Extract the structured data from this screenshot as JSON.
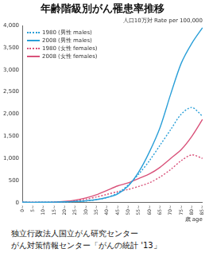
{
  "chart_data": {
    "type": "line",
    "title": "年齢階級別がん罹患率推移",
    "subtitle": "人口10万対 Rate per 100,000",
    "xlabel": "歳 age",
    "categories": [
      "0~",
      "5~",
      "10~",
      "15~",
      "20~",
      "25~",
      "30~",
      "35~",
      "40~",
      "45~",
      "50~",
      "55~",
      "60~",
      "65~",
      "70~",
      "75~",
      "80~",
      "85~"
    ],
    "series": [
      {
        "name": "1980 (男性 males)",
        "color": "#2a9fd8",
        "line_style": "dotted",
        "values": [
          12,
          8,
          10,
          12,
          15,
          25,
          40,
          70,
          120,
          220,
          400,
          650,
          950,
          1300,
          1650,
          2000,
          2150,
          1950
        ]
      },
      {
        "name": "2008 (男性 males)",
        "color": "#2a9fd8",
        "line_style": "solid",
        "values": [
          15,
          10,
          12,
          15,
          20,
          30,
          45,
          70,
          120,
          200,
          380,
          700,
          1150,
          1700,
          2450,
          3150,
          3600,
          3950
        ]
      },
      {
        "name": "1980 (女性 females)",
        "color": "#d9527a",
        "line_style": "dotted",
        "values": [
          10,
          7,
          8,
          10,
          20,
          45,
          80,
          130,
          190,
          250,
          300,
          370,
          450,
          580,
          750,
          950,
          1080,
          1000
        ]
      },
      {
        "name": "2008 (女性 females)",
        "color": "#d9527a",
        "line_style": "solid",
        "values": [
          12,
          8,
          10,
          15,
          30,
          60,
          110,
          180,
          280,
          380,
          450,
          550,
          650,
          800,
          1000,
          1200,
          1500,
          1880
        ]
      }
    ],
    "ylim": [
      0,
      4000
    ],
    "yticks": [
      0,
      500,
      {
        "value": 1000,
        "label": "1,000"
      },
      {
        "value": 1500,
        "label": "1,500"
      },
      {
        "value": 2000,
        "label": "2,000"
      },
      {
        "value": 2500,
        "label": "2,500"
      },
      {
        "value": 3000,
        "label": "3,000"
      },
      {
        "value": 3500,
        "label": "3,500"
      },
      {
        "value": 4000,
        "label": "4,000"
      }
    ],
    "grid": false,
    "legend": "upper left",
    "annotations": [
      "独立行政法人国立がん研究センター",
      "がん対策情報センター「がんの統計 '13」"
    ]
  }
}
